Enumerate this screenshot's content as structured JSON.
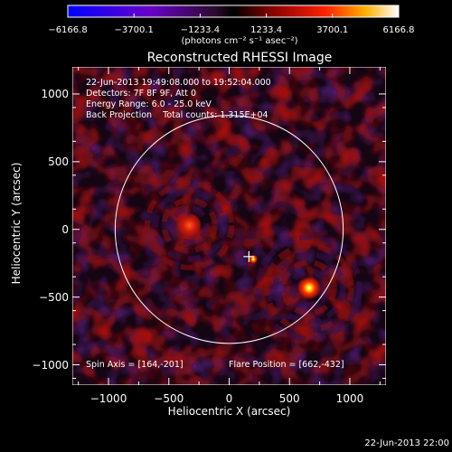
{
  "chart_data": {
    "type": "heatmap",
    "title": "Reconstructed RHESSI Image",
    "xlabel": "Heliocentric X (arcsec)",
    "ylabel": "Heliocentric Y (arcsec)",
    "xlim": [
      -1300,
      1300
    ],
    "ylim": [
      -1150,
      1200
    ],
    "xticks": [
      "−1000",
      "−500",
      "0",
      "500",
      "1000"
    ],
    "xtick_values": [
      -1000,
      -500,
      0,
      500,
      1000
    ],
    "yticks": [
      "1000",
      "500",
      "0",
      "−500",
      "−1000"
    ],
    "ytick_values": [
      1000,
      500,
      0,
      -500,
      -1000
    ],
    "colorbar": {
      "min": -6166.8,
      "max": 6166.8,
      "ticks": [
        "−6166.8",
        "−3700.1",
        "−1233.4",
        "1233.4",
        "3700.1",
        "6166.8"
      ],
      "tick_values": [
        -6166.8,
        -3700.1,
        -1233.4,
        1233.4,
        3700.1,
        6166.8
      ],
      "unit_label": "(photons cm⁻² s⁻¹ asec⁻²)"
    },
    "info_lines": [
      "22-Jun-2013 19:49:08.000 to 19:52:04.000",
      "Detectors: 7F 8F 9F, Att 0",
      "Energy Range: 6.0 - 25.0 keV",
      "Back Projection    Total counts: 1.315E+04"
    ],
    "spin_axis": "Spin Axis = [164,-201]",
    "flare_position": "Flare Position = [662,-432]",
    "solar_limb_radius": 945,
    "spin_axis_point": [
      164,
      -201
    ],
    "sources": [
      {
        "x": 662,
        "y": -432,
        "level": "peak"
      },
      {
        "x": -330,
        "y": 30,
        "level": "secondary"
      },
      {
        "x": 200,
        "y": -220,
        "level": "small"
      }
    ]
  },
  "footer_timestamp": "22-Jun-2013 22:00"
}
